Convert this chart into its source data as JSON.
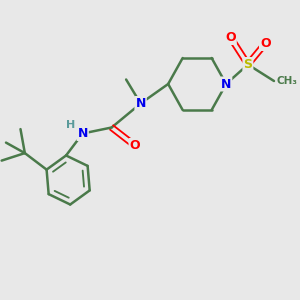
{
  "background_color": "#e8e8e8",
  "bond_color": "#4a7a4a",
  "bond_width": 1.8,
  "atom_colors": {
    "N": "#0000ee",
    "O": "#ff0000",
    "S": "#bbbb00",
    "C": "#4a7a4a",
    "H": "#5a9a9a"
  },
  "figsize": [
    3.0,
    3.0
  ],
  "dpi": 100,
  "xlim": [
    0,
    10
  ],
  "ylim": [
    0,
    10
  ]
}
